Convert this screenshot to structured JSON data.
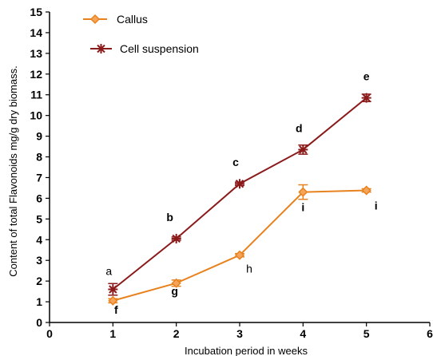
{
  "chart_data": {
    "type": "line",
    "title": "",
    "xlabel": "Incubation period in weeks",
    "ylabel": "Content of total Flavonoids mg/g dry biomass.",
    "xlim": [
      0,
      6
    ],
    "ylim": [
      0,
      15
    ],
    "x_ticks": [
      "0",
      "1",
      "2",
      "3",
      "4",
      "5",
      "6"
    ],
    "y_ticks": [
      "0",
      "1",
      "2",
      "3",
      "4",
      "5",
      "6",
      "7",
      "8",
      "9",
      "10",
      "11",
      "12",
      "13",
      "14",
      "15"
    ],
    "grid": false,
    "legend_position": "top-left",
    "x": [
      1,
      2,
      3,
      4,
      5
    ],
    "series": [
      {
        "name": "Callus",
        "color": "#E8821E",
        "marker": "diamond",
        "values": [
          1.05,
          1.9,
          3.25,
          6.3,
          6.38
        ],
        "errors": [
          0.1,
          0.15,
          0.08,
          0.35,
          0.08
        ],
        "labels": [
          "f",
          "g",
          "h",
          "i",
          "i"
        ],
        "label_bold": [
          true,
          true,
          false,
          true,
          true
        ]
      },
      {
        "name": "Cell suspension",
        "color": "#8B1A1A",
        "marker": "star",
        "values": [
          1.6,
          4.05,
          6.7,
          8.35,
          10.85
        ],
        "errors": [
          0.28,
          0.08,
          0.08,
          0.22,
          0.18
        ],
        "labels": [
          "a",
          "b",
          "c",
          "d",
          "e"
        ],
        "label_bold": [
          false,
          true,
          true,
          true,
          true
        ]
      }
    ]
  }
}
